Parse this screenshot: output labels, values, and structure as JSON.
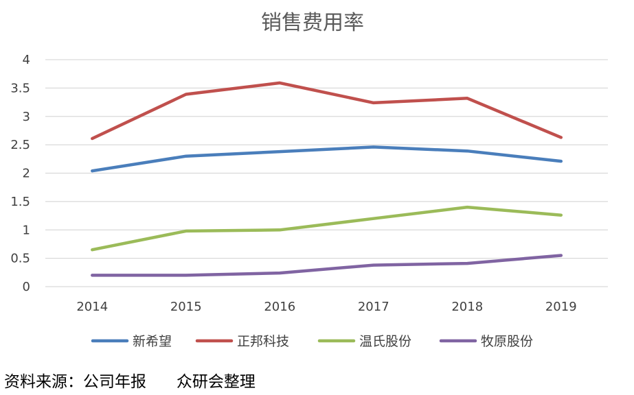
{
  "chart_data": {
    "type": "line",
    "title": "销售费用率",
    "xlabel": "",
    "ylabel": "",
    "categories": [
      "2014",
      "2015",
      "2016",
      "2017",
      "2018",
      "2019"
    ],
    "ylim": [
      0,
      4
    ],
    "yticks": [
      "0",
      "0.5",
      "1",
      "1.5",
      "2",
      "2.5",
      "3",
      "3.5",
      "4"
    ],
    "ytick_values": [
      0,
      0.5,
      1,
      1.5,
      2,
      2.5,
      3,
      3.5,
      4
    ],
    "grid": true,
    "legend_position": "bottom",
    "series": [
      {
        "name": "新希望",
        "color": "#4a7ebb",
        "values": [
          2.04,
          2.3,
          2.38,
          2.46,
          2.39,
          2.21
        ]
      },
      {
        "name": "正邦科技",
        "color": "#c0504d",
        "values": [
          2.61,
          3.39,
          3.59,
          3.24,
          3.32,
          2.63
        ]
      },
      {
        "name": "温氏股份",
        "color": "#9bbb59",
        "values": [
          0.65,
          0.98,
          1.0,
          1.2,
          1.4,
          1.26
        ]
      },
      {
        "name": "牧原股份",
        "color": "#8064a2",
        "values": [
          0.2,
          0.2,
          0.24,
          0.38,
          0.41,
          0.55
        ]
      }
    ]
  },
  "footer": {
    "source_text": "资料来源：公司年报      众研会整理"
  }
}
